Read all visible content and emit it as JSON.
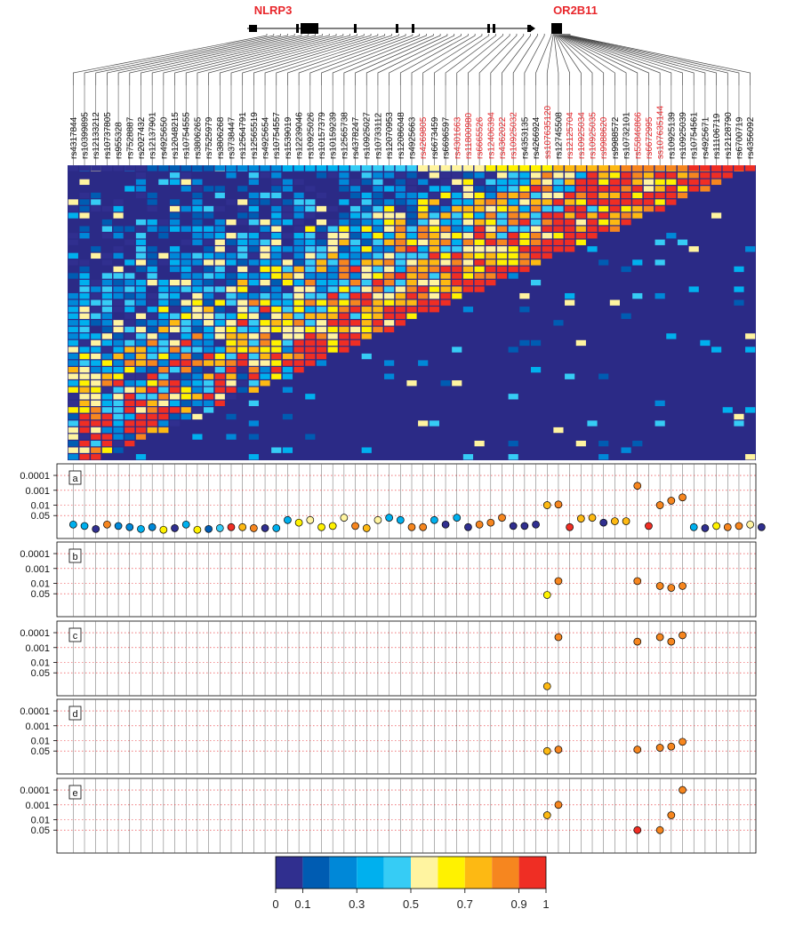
{
  "genes": [
    {
      "name": "NLRP3",
      "color": "#e8262b"
    },
    {
      "name": "OR2B11",
      "color": "#e8262b"
    }
  ],
  "snps": [
    {
      "id": "rs4317844",
      "highlight": false
    },
    {
      "id": "rs10399895",
      "highlight": false
    },
    {
      "id": "rs12133212",
      "highlight": false
    },
    {
      "id": "rs10737805",
      "highlight": false
    },
    {
      "id": "rs955328",
      "highlight": false
    },
    {
      "id": "rs7528887",
      "highlight": false
    },
    {
      "id": "rs2027432",
      "highlight": false
    },
    {
      "id": "rs12137901",
      "highlight": false
    },
    {
      "id": "rs4925650",
      "highlight": false
    },
    {
      "id": "rs12048215",
      "highlight": false
    },
    {
      "id": "rs10754555",
      "highlight": false
    },
    {
      "id": "rs3806265",
      "highlight": false
    },
    {
      "id": "rs7525979",
      "highlight": false
    },
    {
      "id": "rs3806268",
      "highlight": false
    },
    {
      "id": "rs3738447",
      "highlight": false
    },
    {
      "id": "rs12564791",
      "highlight": false
    },
    {
      "id": "rs12565519",
      "highlight": false
    },
    {
      "id": "rs4925654",
      "highlight": false
    },
    {
      "id": "rs10754557",
      "highlight": false
    },
    {
      "id": "rs1539019",
      "highlight": false
    },
    {
      "id": "rs12239046",
      "highlight": false
    },
    {
      "id": "rs10925026",
      "highlight": false
    },
    {
      "id": "rs10157379",
      "highlight": false
    },
    {
      "id": "rs10159239",
      "highlight": false
    },
    {
      "id": "rs12565738",
      "highlight": false
    },
    {
      "id": "rs4378247",
      "highlight": false
    },
    {
      "id": "rs10925027",
      "highlight": false
    },
    {
      "id": "rs10733112",
      "highlight": false
    },
    {
      "id": "rs12070953",
      "highlight": false
    },
    {
      "id": "rs12086048",
      "highlight": false
    },
    {
      "id": "rs4925663",
      "highlight": false
    },
    {
      "id": "rs4269805",
      "highlight": true
    },
    {
      "id": "rs6673459",
      "highlight": false
    },
    {
      "id": "rs6696597",
      "highlight": false
    },
    {
      "id": "rs4301663",
      "highlight": true
    },
    {
      "id": "rs11800980",
      "highlight": true
    },
    {
      "id": "rs6665526",
      "highlight": true
    },
    {
      "id": "rs12406394",
      "highlight": true
    },
    {
      "id": "rs4362022",
      "highlight": true
    },
    {
      "id": "rs10925032",
      "highlight": true
    },
    {
      "id": "rs4353135",
      "highlight": false
    },
    {
      "id": "rs4266924",
      "highlight": false
    },
    {
      "id": "ss107635120",
      "highlight": true
    },
    {
      "id": "rs12745508",
      "highlight": false
    },
    {
      "id": "rs12125704",
      "highlight": true
    },
    {
      "id": "rs10925034",
      "highlight": true
    },
    {
      "id": "rs10925035",
      "highlight": true
    },
    {
      "id": "rs9988620",
      "highlight": true
    },
    {
      "id": "rs9988572",
      "highlight": false
    },
    {
      "id": "rs10732101",
      "highlight": false
    },
    {
      "id": "rs55846866",
      "highlight": true
    },
    {
      "id": "rs6672995",
      "highlight": true
    },
    {
      "id": "ss107635144",
      "highlight": true
    },
    {
      "id": "rs10925139",
      "highlight": false
    },
    {
      "id": "rs10925039",
      "highlight": false
    },
    {
      "id": "rs10754561",
      "highlight": false
    },
    {
      "id": "rs4925671",
      "highlight": false
    },
    {
      "id": "rs11106719",
      "highlight": false
    },
    {
      "id": "rs12128790",
      "highlight": false
    },
    {
      "id": "rs6700719",
      "highlight": false
    },
    {
      "id": "rs4356092",
      "highlight": false
    }
  ],
  "chart_data": {
    "type": "scatter",
    "description_panels": "association p-values per SNP for five analyses",
    "y_ticks": [
      "0.0001",
      "0.001",
      "0.01",
      "0.05"
    ],
    "panels": [
      {
        "label": "a",
        "points": [
          {
            "snp": 0,
            "p": 0.2,
            "r2": 0.3
          },
          {
            "snp": 1,
            "p": 0.25,
            "r2": 0.3
          },
          {
            "snp": 2,
            "p": 0.4,
            "r2": 0.05
          },
          {
            "snp": 3,
            "p": 0.2,
            "r2": 0.85
          },
          {
            "snp": 4,
            "p": 0.25,
            "r2": 0.25
          },
          {
            "snp": 5,
            "p": 0.3,
            "r2": 0.2
          },
          {
            "snp": 6,
            "p": 0.4,
            "r2": 0.3
          },
          {
            "snp": 7,
            "p": 0.3,
            "r2": 0.2
          },
          {
            "snp": 8,
            "p": 0.45,
            "r2": 0.6
          },
          {
            "snp": 9,
            "p": 0.35,
            "r2": 0.05
          },
          {
            "snp": 10,
            "p": 0.2,
            "r2": 0.3
          },
          {
            "snp": 11,
            "p": 0.45,
            "r2": 0.65
          },
          {
            "snp": 12,
            "p": 0.4,
            "r2": 0.1
          },
          {
            "snp": 13,
            "p": 0.35,
            "r2": 0.4
          },
          {
            "snp": 14,
            "p": 0.3,
            "r2": 0.95
          },
          {
            "snp": 15,
            "p": 0.3,
            "r2": 0.75
          },
          {
            "snp": 16,
            "p": 0.35,
            "r2": 0.85
          },
          {
            "snp": 17,
            "p": 0.35,
            "r2": 0.05
          },
          {
            "snp": 18,
            "p": 0.35,
            "r2": 0.3
          },
          {
            "snp": 19,
            "p": 0.1,
            "r2": 0.35
          },
          {
            "snp": 20,
            "p": 0.15,
            "r2": 0.65
          },
          {
            "snp": 21,
            "p": 0.1,
            "r2": 0.55
          },
          {
            "snp": 22,
            "p": 0.3,
            "r2": 0.65
          },
          {
            "snp": 23,
            "p": 0.25,
            "r2": 0.65
          },
          {
            "snp": 24,
            "p": 0.07,
            "r2": 0.55
          },
          {
            "snp": 25,
            "p": 0.25,
            "r2": 0.85
          },
          {
            "snp": 26,
            "p": 0.35,
            "r2": 0.75
          },
          {
            "snp": 27,
            "p": 0.1,
            "r2": 0.55
          },
          {
            "snp": 28,
            "p": 0.07,
            "r2": 0.35
          },
          {
            "snp": 29,
            "p": 0.1,
            "r2": 0.35
          },
          {
            "snp": 30,
            "p": 0.3,
            "r2": 0.85
          },
          {
            "snp": 31,
            "p": 0.3,
            "r2": 0.85
          },
          {
            "snp": 32,
            "p": 0.1,
            "r2": 0.35
          },
          {
            "snp": 33,
            "p": 0.2,
            "r2": 0.05
          },
          {
            "snp": 34,
            "p": 0.07,
            "r2": 0.35
          },
          {
            "snp": 35,
            "p": 0.3,
            "r2": 0.05
          },
          {
            "snp": 36,
            "p": 0.2,
            "r2": 0.85
          },
          {
            "snp": 37,
            "p": 0.15,
            "r2": 0.8
          },
          {
            "snp": 38,
            "p": 0.07,
            "r2": 0.8
          },
          {
            "snp": 39,
            "p": 0.25,
            "r2": 0.05
          },
          {
            "snp": 40,
            "p": 0.25,
            "r2": 0.05
          },
          {
            "snp": 41,
            "p": 0.2,
            "r2": 0.05
          },
          {
            "snp": 42,
            "p": 0.01,
            "r2": 0.75
          },
          {
            "snp": 43,
            "p": 0.009,
            "r2": 0.85
          },
          {
            "snp": 44,
            "p": 0.3,
            "r2": 0.95
          },
          {
            "snp": 45,
            "p": 0.08,
            "r2": 0.75
          },
          {
            "snp": 46,
            "p": 0.07,
            "r2": 0.75
          },
          {
            "snp": 47,
            "p": 0.15,
            "r2": 0.05
          },
          {
            "snp": 48,
            "p": 0.12,
            "r2": 0.75
          },
          {
            "snp": 49,
            "p": 0.12,
            "r2": 0.75
          },
          {
            "snp": 50,
            "p": 0.0005,
            "r2": 0.85
          },
          {
            "snp": 51,
            "p": 0.25,
            "r2": 0.95
          },
          {
            "snp": 52,
            "p": 0.01,
            "r2": 0.85
          },
          {
            "snp": 53,
            "p": 0.005,
            "r2": 0.85
          },
          {
            "snp": 54,
            "p": 0.003,
            "r2": 0.85
          },
          {
            "snp": 55,
            "p": 0.3,
            "r2": 0.35
          },
          {
            "snp": 56,
            "p": 0.35,
            "r2": 0.05
          },
          {
            "snp": 57,
            "p": 0.25,
            "r2": 0.65
          },
          {
            "snp": 58,
            "p": 0.3,
            "r2": 0.85
          },
          {
            "snp": 59,
            "p": 0.25,
            "r2": 0.85
          },
          {
            "snp": 60,
            "p": 0.2,
            "r2": 0.55
          },
          {
            "snp": 61,
            "p": 0.3,
            "r2": 0.05
          }
        ]
      },
      {
        "label": "b",
        "points": [
          {
            "snp": 42,
            "p": 0.06,
            "r2": 0.65
          },
          {
            "snp": 43,
            "p": 0.007,
            "r2": 0.8
          },
          {
            "snp": 50,
            "p": 0.007,
            "r2": 0.85
          },
          {
            "snp": 52,
            "p": 0.015,
            "r2": 0.8
          },
          {
            "snp": 53,
            "p": 0.02,
            "r2": 0.85
          },
          {
            "snp": 54,
            "p": 0.015,
            "r2": 0.85
          }
        ]
      },
      {
        "label": "c",
        "points": [
          {
            "snp": 42,
            "p": 0.4,
            "r2": 0.75
          },
          {
            "snp": 43,
            "p": 0.0002,
            "r2": 0.8
          },
          {
            "snp": 50,
            "p": 0.0004,
            "r2": 0.85
          },
          {
            "snp": 52,
            "p": 0.0002,
            "r2": 0.8
          },
          {
            "snp": 53,
            "p": 0.0004,
            "r2": 0.8
          },
          {
            "snp": 54,
            "p": 0.00015,
            "r2": 0.8
          }
        ]
      },
      {
        "label": "d",
        "points": [
          {
            "snp": 42,
            "p": 0.05,
            "r2": 0.75
          },
          {
            "snp": 43,
            "p": 0.04,
            "r2": 0.8
          },
          {
            "snp": 50,
            "p": 0.04,
            "r2": 0.85
          },
          {
            "snp": 52,
            "p": 0.03,
            "r2": 0.8
          },
          {
            "snp": 53,
            "p": 0.025,
            "r2": 0.8
          },
          {
            "snp": 54,
            "p": 0.012,
            "r2": 0.8
          }
        ]
      },
      {
        "label": "e",
        "points": [
          {
            "snp": 42,
            "p": 0.005,
            "r2": 0.7
          },
          {
            "snp": 43,
            "p": 0.001,
            "r2": 0.85
          },
          {
            "snp": 50,
            "p": 0.05,
            "r2": 0.9
          },
          {
            "snp": 52,
            "p": 0.05,
            "r2": 0.8
          },
          {
            "snp": 53,
            "p": 0.005,
            "r2": 0.8
          },
          {
            "snp": 54,
            "p": 0.0001,
            "r2": 0.8
          }
        ]
      }
    ],
    "colorbar": {
      "ticks": [
        "0",
        "0.1",
        "0.3",
        "0.5",
        "0.7",
        "0.9",
        "1"
      ],
      "colors": [
        "#302f8f",
        "#005cb2",
        "#0088d8",
        "#00b0ee",
        "#36ccf5",
        "#fff4a0",
        "#fff200",
        "#fdb913",
        "#f6861f",
        "#ef2e24"
      ]
    }
  }
}
